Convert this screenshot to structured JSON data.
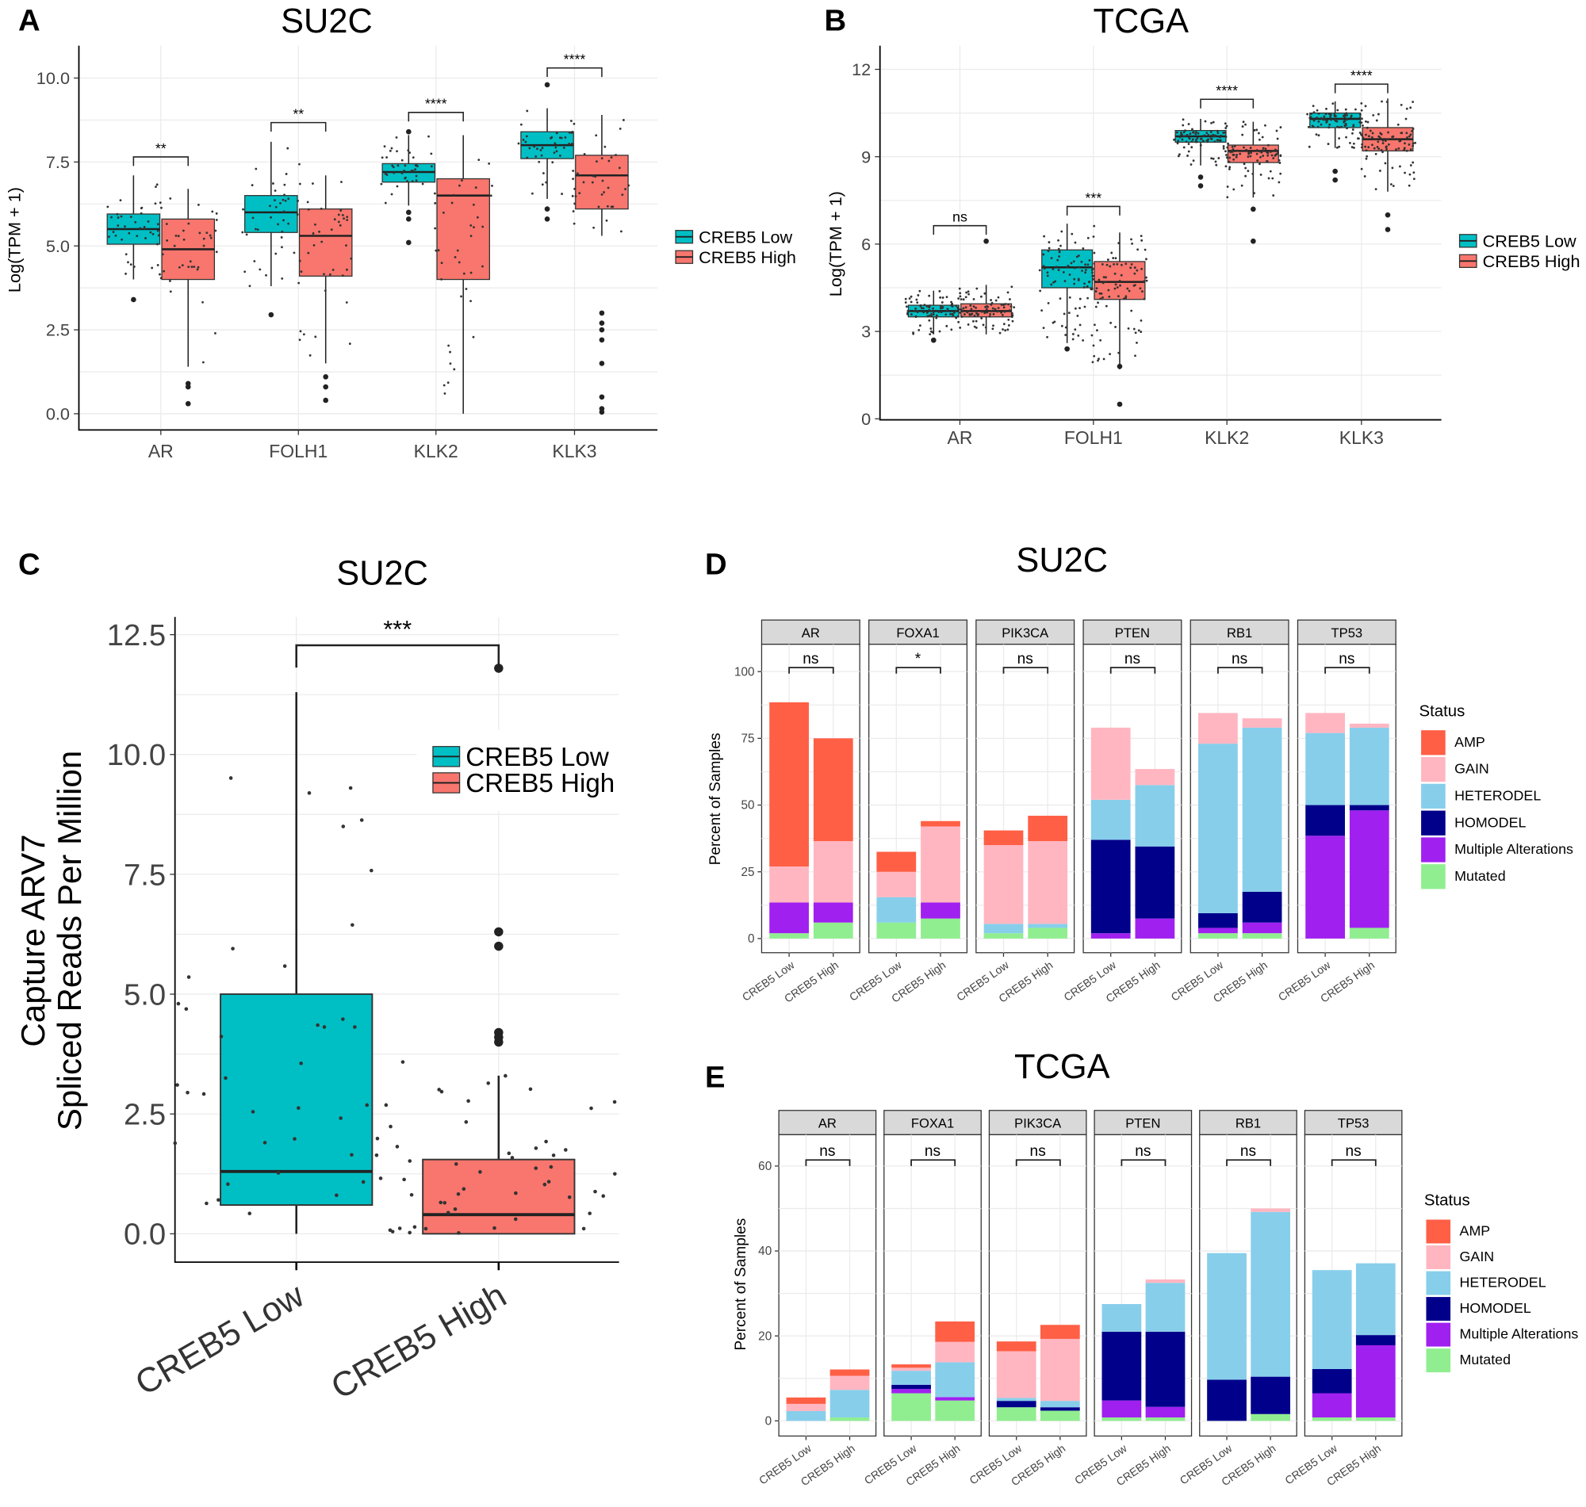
{
  "colors": {
    "low": "#00BFC4",
    "high": "#F8766D"
  },
  "chart_data": [
    {
      "panel_label": "A",
      "type": "box",
      "title": "SU2C",
      "ylabel": "Log(TPM + 1)",
      "ylim": [
        -0.4,
        10.5
      ],
      "yticks": [
        0,
        2.5,
        5,
        7.5,
        10
      ],
      "ytick_labels": [
        "0.0",
        "2.5",
        "5.0",
        "7.5",
        "10.0"
      ],
      "grid": true,
      "categories": [
        "AR",
        "FOLH1",
        "KLK2",
        "KLK3"
      ],
      "groups": [
        "CREB5 Low",
        "CREB5 High"
      ],
      "legend": {
        "placement": "right",
        "entries": [
          "CREB5 Low",
          "CREB5 High"
        ]
      },
      "significance": [
        "**",
        "**",
        "****",
        "****"
      ],
      "boxes": [
        [
          {
            "min": 4.0,
            "q1": 5.05,
            "median": 5.5,
            "q3": 5.95,
            "max": 7.1,
            "outliers": [
              3.4
            ]
          },
          {
            "min": 1.4,
            "q1": 4.0,
            "median": 4.9,
            "q3": 5.8,
            "max": 6.7,
            "outliers": [
              0.9,
              0.8,
              0.3
            ]
          }
        ],
        [
          {
            "min": 3.8,
            "q1": 5.4,
            "median": 6.0,
            "q3": 6.5,
            "max": 8.1,
            "outliers": [
              2.95
            ]
          },
          {
            "min": 1.5,
            "q1": 4.1,
            "median": 5.3,
            "q3": 6.1,
            "max": 7.1,
            "outliers": [
              1.1,
              0.8,
              0.4
            ]
          }
        ],
        [
          {
            "min": 6.2,
            "q1": 6.9,
            "median": 7.2,
            "q3": 7.45,
            "max": 8.3,
            "outliers": [
              5.1,
              5.8,
              6.0,
              8.4
            ]
          },
          {
            "min": 0.0,
            "q1": 4.0,
            "median": 6.5,
            "q3": 7.0,
            "max": 8.3,
            "outliers": []
          }
        ],
        [
          {
            "min": 6.4,
            "q1": 7.6,
            "median": 8.0,
            "q3": 8.4,
            "max": 9.1,
            "outliers": [
              5.8,
              6.1,
              9.8
            ]
          },
          {
            "min": 5.3,
            "q1": 6.1,
            "median": 7.1,
            "q3": 7.7,
            "max": 8.9,
            "outliers": [
              3.0,
              2.7,
              2.5,
              2.2,
              1.5,
              0.5,
              0.15,
              0.05
            ]
          }
        ]
      ]
    },
    {
      "panel_label": "B",
      "type": "box",
      "title": "TCGA",
      "ylabel": "Log(TPM + 1)",
      "ylim": [
        0,
        12
      ],
      "yticks": [
        0,
        3,
        6,
        9,
        12
      ],
      "ytick_labels": [
        "0",
        "3",
        "6",
        "9",
        "12"
      ],
      "grid": true,
      "categories": [
        "AR",
        "FOLH1",
        "KLK2",
        "KLK3"
      ],
      "groups": [
        "CREB5 Low",
        "CREB5 High"
      ],
      "legend": {
        "placement": "right",
        "entries": [
          "CREB5 Low",
          "CREB5 High"
        ]
      },
      "significance": [
        "ns",
        "***",
        "****",
        "****"
      ],
      "boxes": [
        [
          {
            "min": 2.9,
            "q1": 3.5,
            "median": 3.7,
            "q3": 3.9,
            "max": 4.4,
            "outliers": [
              2.7
            ]
          },
          {
            "min": 2.9,
            "q1": 3.5,
            "median": 3.7,
            "q3": 3.95,
            "max": 4.6,
            "outliers": [
              6.1
            ]
          }
        ],
        [
          {
            "min": 2.6,
            "q1": 4.5,
            "median": 5.2,
            "q3": 5.8,
            "max": 6.7,
            "outliers": [
              2.4
            ]
          },
          {
            "min": 1.7,
            "q1": 4.1,
            "median": 4.7,
            "q3": 5.4,
            "max": 6.4,
            "outliers": [
              1.8,
              0.5
            ]
          }
        ],
        [
          {
            "min": 8.7,
            "q1": 9.5,
            "median": 9.7,
            "q3": 9.9,
            "max": 10.3,
            "outliers": [
              8.0,
              8.3
            ]
          },
          {
            "min": 7.6,
            "q1": 8.8,
            "median": 9.2,
            "q3": 9.4,
            "max": 10.2,
            "outliers": [
              7.2,
              6.1
            ]
          }
        ],
        [
          {
            "min": 9.3,
            "q1": 10.0,
            "median": 10.3,
            "q3": 10.5,
            "max": 10.9,
            "outliers": [
              8.2,
              8.5
            ]
          },
          {
            "min": 7.8,
            "q1": 9.2,
            "median": 9.6,
            "q3": 10.0,
            "max": 11.0,
            "outliers": [
              7.0,
              6.5
            ]
          }
        ]
      ]
    },
    {
      "panel_label": "C",
      "type": "box",
      "title": "SU2C",
      "ylabel_lines": [
        "Capture ARV7",
        "Spliced Reads Per Million"
      ],
      "ylim": [
        -0.6,
        12.8
      ],
      "yticks": [
        0,
        2.5,
        5,
        7.5,
        10,
        12.5
      ],
      "ytick_labels": [
        "0.0",
        "2.5",
        "5.0",
        "7.5",
        "10.0",
        "12.5"
      ],
      "grid": true,
      "categories": [
        "CREB5 Low",
        "CREB5 High"
      ],
      "legend": {
        "placement": "top-right",
        "entries": [
          "CREB5 Low",
          "CREB5 High"
        ]
      },
      "significance": [
        "***"
      ],
      "boxes": [
        [
          {
            "min": 0.0,
            "q1": 0.6,
            "median": 1.3,
            "q3": 5.0,
            "max": 11.3,
            "outliers": []
          },
          {
            "min": 0.0,
            "q1": 0.0,
            "median": 0.4,
            "q3": 1.55,
            "max": 3.3,
            "outliers": [
              4.0,
              4.1,
              4.2,
              6.0,
              6.3,
              11.8
            ]
          }
        ]
      ]
    },
    {
      "panel_label": "D",
      "type": "stacked_bar",
      "title": "SU2C",
      "ylabel": "Percent of Samples",
      "ylim": [
        0,
        110
      ],
      "yticks": [
        0,
        25,
        50,
        75,
        100
      ],
      "ytick_labels": [
        "0",
        "25",
        "50",
        "75",
        "100"
      ],
      "categories": [
        "CREB5 Low",
        "CREB5 High"
      ],
      "legend": {
        "title": "Status",
        "placement": "right"
      },
      "series": [
        {
          "name": "AMP",
          "color": "#FF5F45"
        },
        {
          "name": "GAIN",
          "color": "#FFB6C1"
        },
        {
          "name": "HETERODEL",
          "color": "#87CEEB"
        },
        {
          "name": "HOMODEL",
          "color": "#00008B"
        },
        {
          "name": "Multiple Alterations",
          "color": "#A020F0"
        },
        {
          "name": "Mutated",
          "color": "#90EE90"
        }
      ],
      "facets": [
        {
          "name": "AR",
          "sig": "ns",
          "values": [
            [
              61.5,
              13.5,
              0,
              0,
              11.5,
              2
            ],
            [
              38.5,
              23,
              0,
              0,
              7.5,
              6
            ]
          ]
        },
        {
          "name": "FOXA1",
          "sig": "*",
          "values": [
            [
              7.5,
              9.5,
              9.5,
              0,
              0,
              6
            ],
            [
              2,
              28.5,
              0,
              0,
              6,
              7.5
            ]
          ]
        },
        {
          "name": "PIK3CA",
          "sig": "ns",
          "values": [
            [
              5.5,
              29.5,
              3.5,
              0,
              0,
              2
            ],
            [
              9.5,
              31,
              1.5,
              0,
              0,
              4
            ]
          ]
        },
        {
          "name": "PTEN",
          "sig": "ns",
          "values": [
            [
              0,
              27,
              15,
              35,
              2,
              0
            ],
            [
              0,
              6,
              23,
              27,
              7.5,
              0
            ]
          ]
        },
        {
          "name": "RB1",
          "sig": "ns",
          "values": [
            [
              0,
              11.5,
              63.5,
              5.5,
              2,
              2
            ],
            [
              0,
              3.5,
              61.5,
              11.5,
              4,
              2
            ]
          ]
        },
        {
          "name": "TP53",
          "sig": "ns",
          "values": [
            [
              0,
              7.5,
              27,
              11.5,
              38.5,
              0
            ],
            [
              0,
              1.5,
              29,
              2,
              44,
              4
            ]
          ]
        }
      ]
    },
    {
      "panel_label": "E",
      "type": "stacked_bar",
      "title": "TCGA",
      "ylabel": "Percent of Samples",
      "ylim": [
        0,
        66
      ],
      "yticks": [
        0,
        20,
        40,
        60
      ],
      "ytick_labels": [
        "0",
        "20",
        "40",
        "60"
      ],
      "categories": [
        "CREB5 Low",
        "CREB5 High"
      ],
      "legend": {
        "title": "Status",
        "placement": "right"
      },
      "series": [
        {
          "name": "AMP",
          "color": "#FF5F45"
        },
        {
          "name": "GAIN",
          "color": "#FFB6C1"
        },
        {
          "name": "HETERODEL",
          "color": "#87CEEB"
        },
        {
          "name": "HOMODEL",
          "color": "#00008B"
        },
        {
          "name": "Multiple Alterations",
          "color": "#A020F0"
        },
        {
          "name": "Mutated",
          "color": "#90EE90"
        }
      ],
      "facets": [
        {
          "name": "AR",
          "sig": "ns",
          "values": [
            [
              1.5,
              1.7,
              2.3,
              0,
              0,
              0
            ],
            [
              1.5,
              3.3,
              6.5,
              0,
              0,
              0.8
            ]
          ]
        },
        {
          "name": "FOXA1",
          "sig": "ns",
          "values": [
            [
              0.8,
              0.7,
              3.3,
              1,
              1,
              6.5
            ],
            [
              4.8,
              4.8,
              8.2,
              0,
              0.8,
              4.8
            ]
          ]
        },
        {
          "name": "PIK3CA",
          "sig": "ns",
          "values": [
            [
              2.3,
              11,
              0.7,
              1.5,
              0,
              3.2
            ],
            [
              3.3,
              14.6,
              1.5,
              0.8,
              0,
              2.4
            ]
          ]
        },
        {
          "name": "PTEN",
          "sig": "ns",
          "values": [
            [
              0,
              0,
              6.5,
              16.2,
              4,
              0.8
            ],
            [
              0,
              0.8,
              11.5,
              17.7,
              2.5,
              0.8
            ]
          ]
        },
        {
          "name": "RB1",
          "sig": "ns",
          "values": [
            [
              0,
              0,
              29.8,
              9.7,
              0,
              0
            ],
            [
              0,
              0.8,
              38.8,
              8.8,
              0,
              1.6
            ]
          ]
        },
        {
          "name": "TP53",
          "sig": "ns",
          "values": [
            [
              0,
              0,
              23.3,
              5.7,
              5.7,
              0.8
            ],
            [
              0,
              0,
              16.9,
              2.4,
              17,
              0.8
            ]
          ]
        }
      ]
    }
  ]
}
